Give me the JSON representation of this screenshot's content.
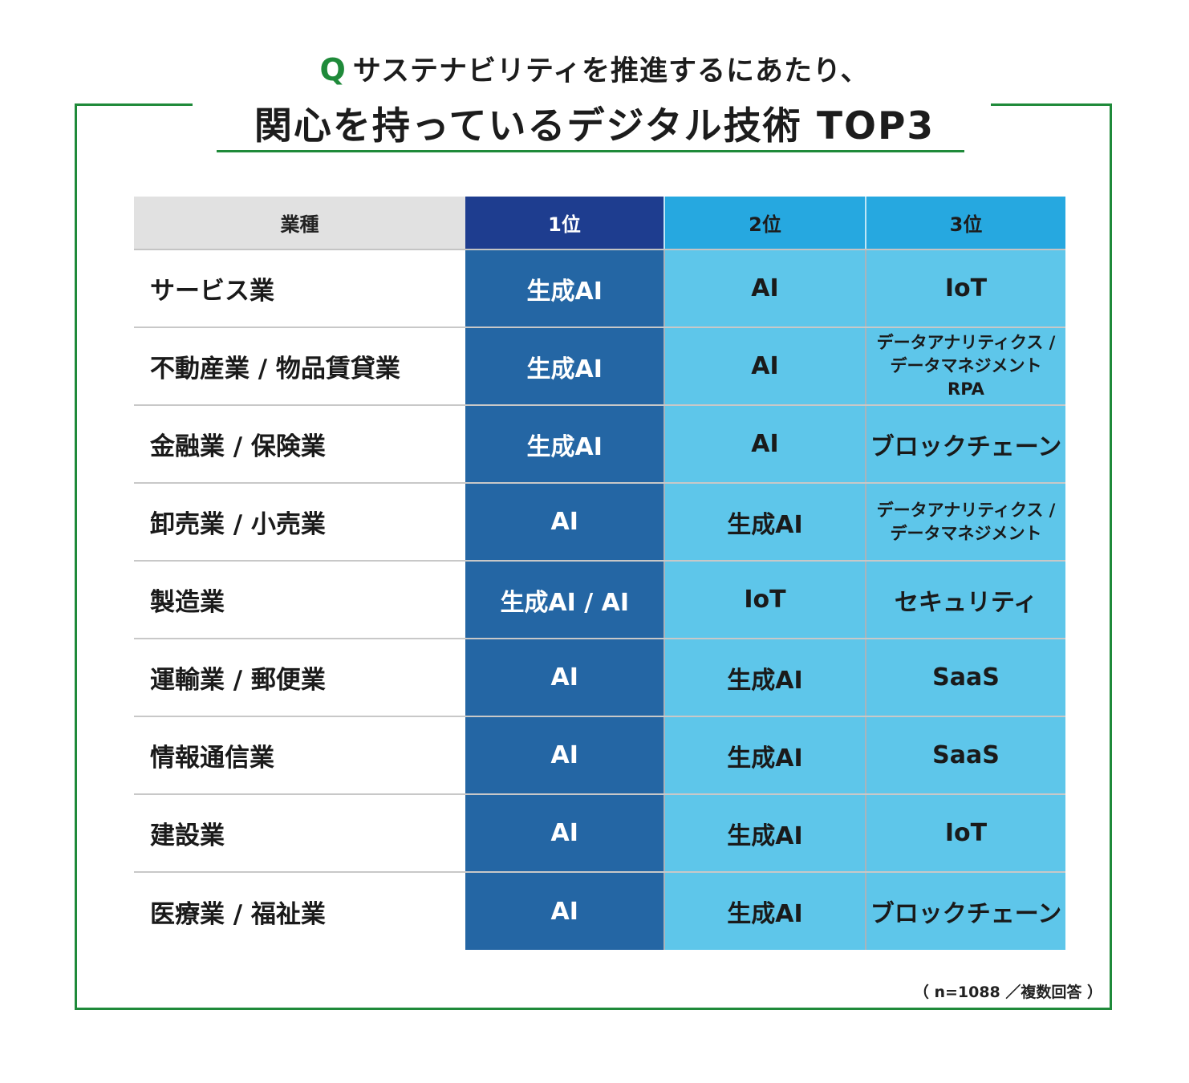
{
  "header": {
    "q_mark": "Q",
    "subtitle": "サステナビリティを推進するにあたり、",
    "title": "関心を持っているデジタル技術 TOP3"
  },
  "table": {
    "headers": [
      "業種",
      "1位",
      "2位",
      "3位"
    ],
    "rows": [
      {
        "industry": "サービス業",
        "rank1": "生成AI",
        "rank2": "AI",
        "rank3": "IoT"
      },
      {
        "industry": "不動産業 / 物品賃貸業",
        "rank1": "生成AI",
        "rank2": "AI",
        "rank3": "データアナリティクス /\nデータマネジメント\nRPA"
      },
      {
        "industry": "金融業 / 保険業",
        "rank1": "生成AI",
        "rank2": "AI",
        "rank3": "ブロックチェーン"
      },
      {
        "industry": "卸売業 / 小売業",
        "rank1": "AI",
        "rank2": "生成AI",
        "rank3": "データアナリティクス /\nデータマネジメント"
      },
      {
        "industry": "製造業",
        "rank1": "生成AI / AI",
        "rank2": "IoT",
        "rank3": "セキュリティ"
      },
      {
        "industry": "運輸業 / 郵便業",
        "rank1": "AI",
        "rank2": "生成AI",
        "rank3": "SaaS"
      },
      {
        "industry": "情報通信業",
        "rank1": "AI",
        "rank2": "生成AI",
        "rank3": "SaaS"
      },
      {
        "industry": "建設業",
        "rank1": "AI",
        "rank2": "生成AI",
        "rank3": "IoT"
      },
      {
        "industry": "医療業 / 福祉業",
        "rank1": "AI",
        "rank2": "生成AI",
        "rank3": "ブロックチェーン"
      }
    ]
  },
  "note": "（ n=1088 ／複数回答 ）",
  "colors": {
    "frame_green": "#1f8a3a",
    "rank1_blue": "#2466a4",
    "rank1_header": "#1e3d8f",
    "rank2_3_cell": "#5ec6ea",
    "rank2_3_header": "#26a8e0"
  }
}
